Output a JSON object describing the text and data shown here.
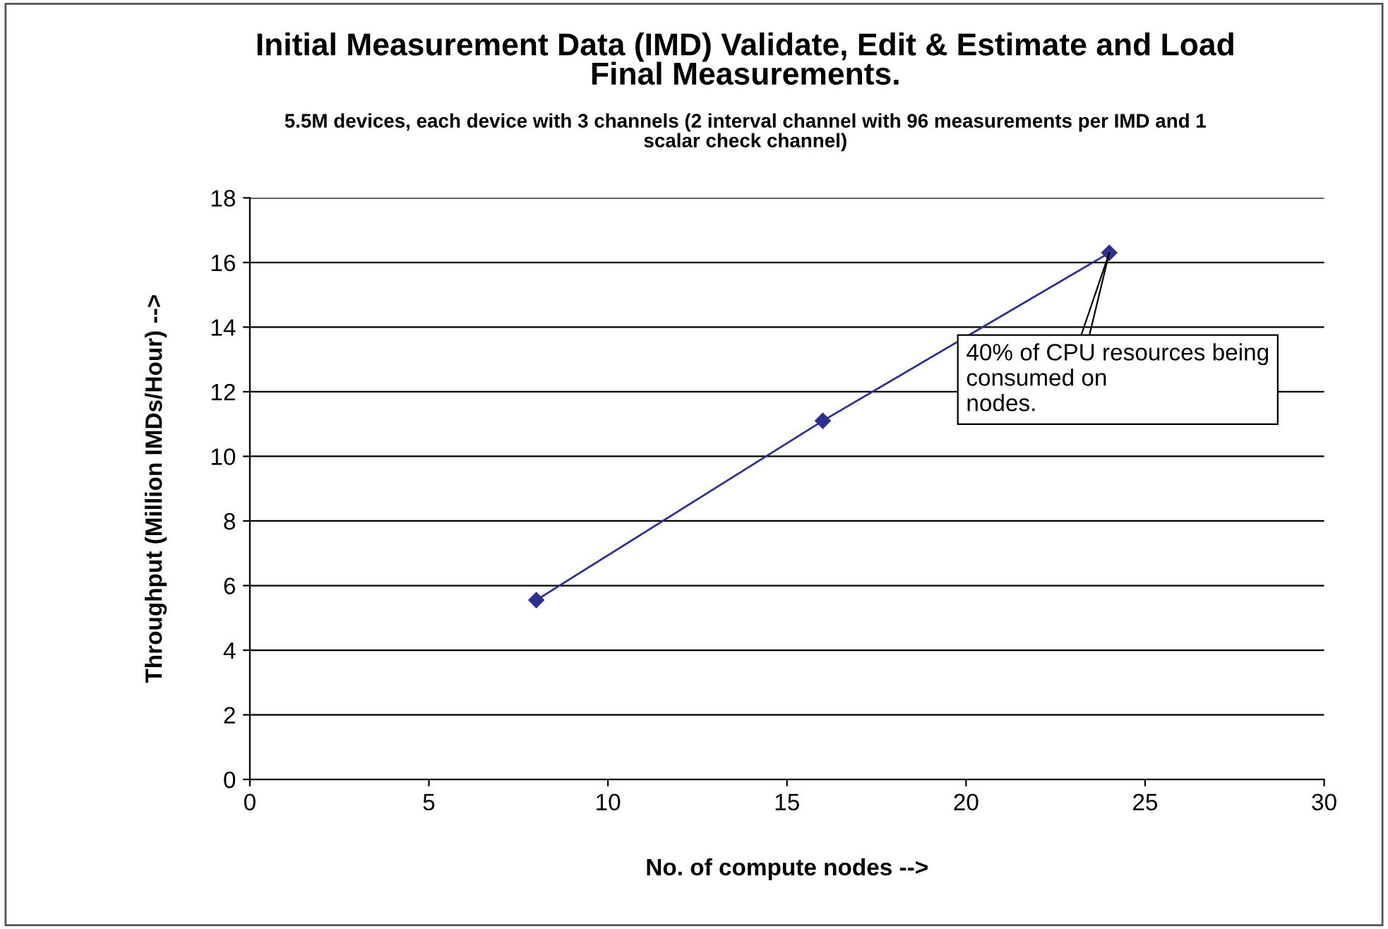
{
  "chart_data": {
    "type": "line",
    "title": "Initial Measurement Data (IMD) Validate, Edit & Estimate and Load\nFinal Measurements.",
    "subtitle": "5.5M devices, each device with 3 channels (2 interval channel with 96 measurements per IMD and 1\nscalar check channel)",
    "xlabel": "No. of compute nodes -->",
    "ylabel": "Throughput (Million IMDs/Hour) -->",
    "x": [
      8,
      16,
      24
    ],
    "series": [
      {
        "color": "#2e3192",
        "values": [
          5.55,
          11.1,
          16.3
        ]
      }
    ],
    "xlim": [
      0,
      30
    ],
    "xticks": [
      0,
      5,
      10,
      15,
      20,
      25,
      30
    ],
    "ylim": [
      0,
      18
    ],
    "yticks": [
      0,
      2,
      4,
      6,
      8,
      10,
      12,
      14,
      16,
      18
    ],
    "grid": "y",
    "marker": "diamond",
    "line_style": "solid",
    "legend": false,
    "annotations": [
      {
        "text": "40% of CPU resources being\nconsumed on\nnodes.",
        "x": 24,
        "y": 16.3
      }
    ]
  }
}
